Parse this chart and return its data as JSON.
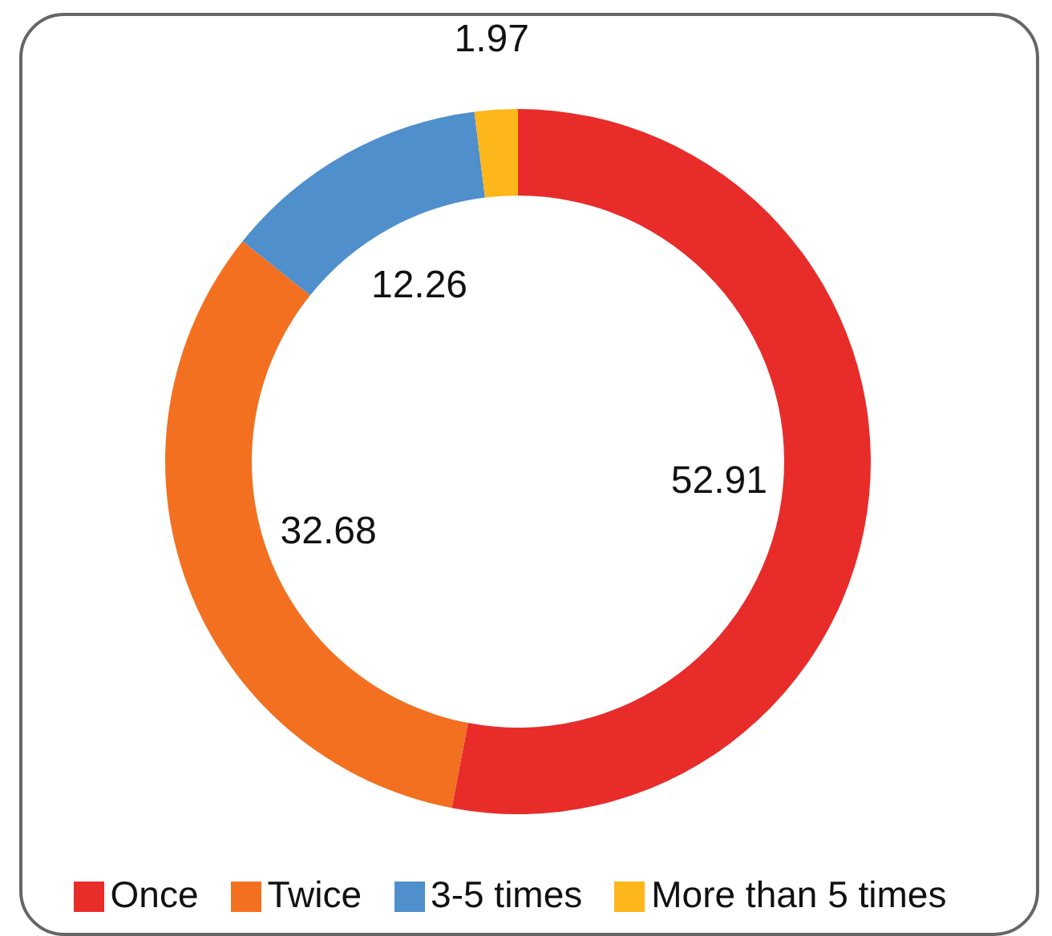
{
  "chart_data": {
    "type": "donut",
    "categories": [
      "Once",
      "Twice",
      "3-5 times",
      "More than 5 times"
    ],
    "values": [
      52.91,
      32.68,
      12.26,
      1.97
    ],
    "colors": [
      "#e82c2a",
      "#f37021",
      "#4f8fcc",
      "#fdb71a"
    ],
    "data_labels": true,
    "legend": "bottom"
  }
}
